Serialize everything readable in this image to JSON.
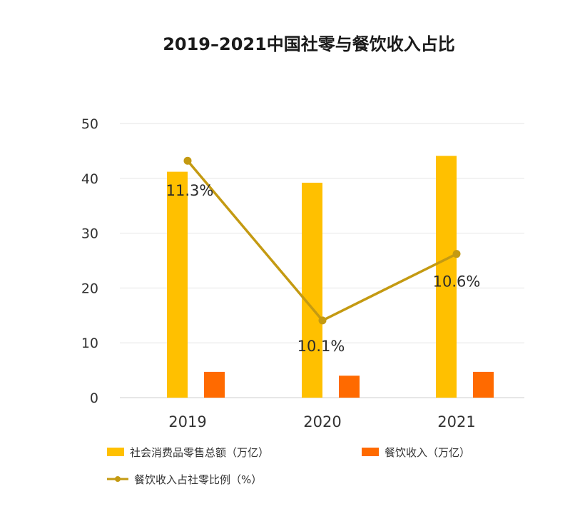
{
  "chart_data": {
    "type": "bar",
    "title": "2019–2021中国社零与餐饮收入占比",
    "categories": [
      "2019",
      "2020",
      "2021"
    ],
    "ylim": [
      0,
      50
    ],
    "yticks": [
      "0",
      "10",
      "20",
      "30",
      "40",
      "50"
    ],
    "grid": true,
    "legend_position": "bottom",
    "series": [
      {
        "name": "社会消费品零售总额（万亿）",
        "type": "bar",
        "color": "#FFC000",
        "values": [
          41.2,
          39.2,
          44.1
        ]
      },
      {
        "name": "餐饮收入（万亿）",
        "type": "bar",
        "color": "#FF6A00",
        "values": [
          4.7,
          4.0,
          4.7
        ]
      },
      {
        "name": "餐饮收入占社零比例（%）",
        "type": "line",
        "color": "#C49A12",
        "values": [
          11.3,
          10.1,
          10.6
        ],
        "labels": [
          "11.3%",
          "10.1%",
          "10.6%"
        ]
      }
    ]
  }
}
